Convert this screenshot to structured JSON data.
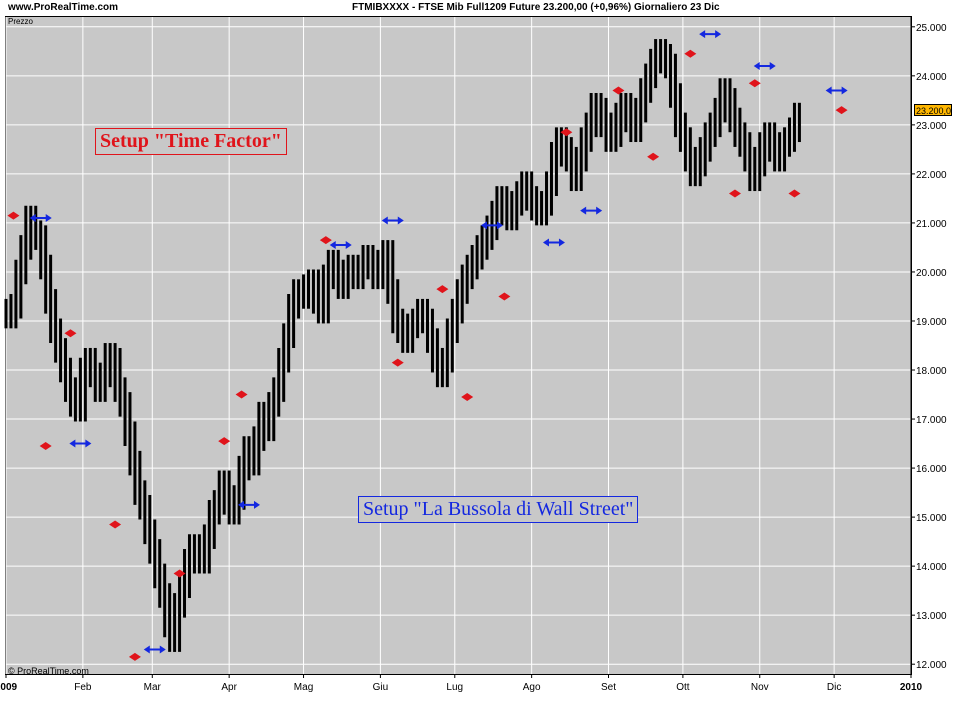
{
  "header": {
    "site": "www.ProRealTime.com",
    "symbol_info": "FTMIBXXXX - FTSE Mib Full1209 Future    23.200,00 (+0,96%)    Giornaliero  23 Dic"
  },
  "panel_label": "Prezzo",
  "footer_credit": "© ProRealTime.com",
  "annotations": {
    "time_factor": "Setup \"Time Factor\"",
    "bussola": "Setup \"La Bussola di Wall Street\""
  },
  "last_price_tag": "23.200,0",
  "colors": {
    "background": "#c8c8c8",
    "bars": "#000000",
    "red_marker": "#e0141b",
    "blue_marker": "#1428e0",
    "grid": "#ffffff",
    "price_tag": "#ffb700"
  },
  "chart_data": {
    "type": "ohlc",
    "title": "FTMIBXXXX - FTSE Mib Full1209 Future",
    "ylim": [
      11800,
      25200
    ],
    "y_ticks": [
      "12.000",
      "13.000",
      "14.000",
      "15.000",
      "16.000",
      "17.000",
      "18.000",
      "19.000",
      "20.000",
      "21.000",
      "22.000",
      "23.000",
      "24.000",
      "25.000"
    ],
    "y_tick_values": [
      12000,
      13000,
      14000,
      15000,
      16000,
      17000,
      18000,
      19000,
      20000,
      21000,
      22000,
      23000,
      24000,
      25000
    ],
    "x_labels": [
      "2009",
      "Feb",
      "Mar",
      "Apr",
      "Mag",
      "Giu",
      "Lug",
      "Ago",
      "Set",
      "Ott",
      "Nov",
      "Dic",
      "2010"
    ],
    "x_label_days": [
      0,
      31,
      59,
      90,
      120,
      151,
      181,
      212,
      243,
      273,
      304,
      334,
      365
    ],
    "grid": true,
    "series": [
      {
        "name": "price",
        "points": [
          [
            0,
            19200
          ],
          [
            2,
            19100
          ],
          [
            4,
            19300
          ],
          [
            6,
            20000
          ],
          [
            8,
            20500
          ],
          [
            10,
            21100
          ],
          [
            12,
            20800
          ],
          [
            14,
            20700
          ],
          [
            16,
            20100
          ],
          [
            18,
            19400
          ],
          [
            20,
            18800
          ],
          [
            22,
            18400
          ],
          [
            24,
            18000
          ],
          [
            26,
            17600
          ],
          [
            28,
            17300
          ],
          [
            30,
            17200
          ],
          [
            32,
            18000
          ],
          [
            34,
            18200
          ],
          [
            36,
            17900
          ],
          [
            38,
            17600
          ],
          [
            40,
            17900
          ],
          [
            42,
            18300
          ],
          [
            44,
            18200
          ],
          [
            46,
            17600
          ],
          [
            48,
            17300
          ],
          [
            50,
            16700
          ],
          [
            52,
            16100
          ],
          [
            54,
            15500
          ],
          [
            56,
            15200
          ],
          [
            58,
            14700
          ],
          [
            60,
            14300
          ],
          [
            62,
            13800
          ],
          [
            64,
            13400
          ],
          [
            66,
            12800
          ],
          [
            68,
            12500
          ],
          [
            70,
            13200
          ],
          [
            72,
            13600
          ],
          [
            74,
            14100
          ],
          [
            76,
            14400
          ],
          [
            78,
            14200
          ],
          [
            80,
            14100
          ],
          [
            82,
            14600
          ],
          [
            84,
            15100
          ],
          [
            86,
            15300
          ],
          [
            88,
            15700
          ],
          [
            90,
            15400
          ],
          [
            92,
            15100
          ],
          [
            94,
            15400
          ],
          [
            96,
            16000
          ],
          [
            98,
            16400
          ],
          [
            100,
            16100
          ],
          [
            102,
            16600
          ],
          [
            104,
            17100
          ],
          [
            106,
            16800
          ],
          [
            108,
            17300
          ],
          [
            110,
            17600
          ],
          [
            112,
            18200
          ],
          [
            114,
            18700
          ],
          [
            116,
            19300
          ],
          [
            118,
            19600
          ],
          [
            120,
            19500
          ],
          [
            122,
            19700
          ],
          [
            124,
            19800
          ],
          [
            126,
            19400
          ],
          [
            128,
            19200
          ],
          [
            130,
            19900
          ],
          [
            132,
            20200
          ],
          [
            134,
            20000
          ],
          [
            136,
            19700
          ],
          [
            138,
            20000
          ],
          [
            140,
            20100
          ],
          [
            142,
            19900
          ],
          [
            144,
            20100
          ],
          [
            146,
            20300
          ],
          [
            148,
            20200
          ],
          [
            150,
            19900
          ],
          [
            152,
            20200
          ],
          [
            154,
            20400
          ],
          [
            156,
            19600
          ],
          [
            158,
            19000
          ],
          [
            160,
            18800
          ],
          [
            162,
            18600
          ],
          [
            164,
            18900
          ],
          [
            166,
            19000
          ],
          [
            168,
            19200
          ],
          [
            170,
            19000
          ],
          [
            172,
            18600
          ],
          [
            174,
            18200
          ],
          [
            176,
            17900
          ],
          [
            178,
            18200
          ],
          [
            180,
            18800
          ],
          [
            182,
            19200
          ],
          [
            184,
            19600
          ],
          [
            186,
            19900
          ],
          [
            188,
            20100
          ],
          [
            190,
            20300
          ],
          [
            192,
            20500
          ],
          [
            194,
            20700
          ],
          [
            196,
            20900
          ],
          [
            198,
            21200
          ],
          [
            200,
            21500
          ],
          [
            202,
            21200
          ],
          [
            204,
            21100
          ],
          [
            206,
            21400
          ],
          [
            208,
            21600
          ],
          [
            210,
            21800
          ],
          [
            212,
            21500
          ],
          [
            214,
            21300
          ],
          [
            216,
            21200
          ],
          [
            218,
            21400
          ],
          [
            220,
            21800
          ],
          [
            222,
            22400
          ],
          [
            224,
            22700
          ],
          [
            226,
            22500
          ],
          [
            228,
            22300
          ],
          [
            230,
            21900
          ],
          [
            232,
            22300
          ],
          [
            234,
            22700
          ],
          [
            236,
            23000
          ],
          [
            238,
            23400
          ],
          [
            240,
            23300
          ],
          [
            242,
            23000
          ],
          [
            244,
            22700
          ],
          [
            246,
            22800
          ],
          [
            248,
            23200
          ],
          [
            250,
            23400
          ],
          [
            252,
            23100
          ],
          [
            254,
            22900
          ],
          [
            256,
            23300
          ],
          [
            258,
            23700
          ],
          [
            260,
            24000
          ],
          [
            262,
            24300
          ],
          [
            264,
            24500
          ],
          [
            266,
            24400
          ],
          [
            268,
            24200
          ],
          [
            270,
            23600
          ],
          [
            272,
            23000
          ],
          [
            274,
            22700
          ],
          [
            276,
            22300
          ],
          [
            278,
            22000
          ],
          [
            280,
            22200
          ],
          [
            282,
            22500
          ],
          [
            284,
            22800
          ],
          [
            286,
            23000
          ],
          [
            288,
            23300
          ],
          [
            290,
            23700
          ],
          [
            292,
            23500
          ],
          [
            294,
            23100
          ],
          [
            296,
            22800
          ],
          [
            298,
            22600
          ],
          [
            300,
            22300
          ],
          [
            302,
            21900
          ],
          [
            304,
            22200
          ],
          [
            306,
            22600
          ],
          [
            308,
            22800
          ],
          [
            310,
            22500
          ],
          [
            312,
            22300
          ],
          [
            314,
            22600
          ],
          [
            316,
            22700
          ],
          [
            318,
            22900
          ],
          [
            320,
            23200
          ]
        ]
      }
    ],
    "red_markers": [
      [
        3,
        21150
      ],
      [
        16,
        16450
      ],
      [
        26,
        18750
      ],
      [
        44,
        14850
      ],
      [
        52,
        12150
      ],
      [
        70,
        13850
      ],
      [
        88,
        16550
      ],
      [
        95,
        17500
      ],
      [
        129,
        20650
      ],
      [
        158,
        18150
      ],
      [
        176,
        19650
      ],
      [
        186,
        17450
      ],
      [
        201,
        19500
      ],
      [
        226,
        22850
      ],
      [
        247,
        23700
      ],
      [
        261,
        22350
      ],
      [
        276,
        24450
      ],
      [
        294,
        21600
      ],
      [
        302,
        23850
      ],
      [
        318,
        21600
      ],
      [
        337,
        23300
      ]
    ],
    "blue_markers": [
      [
        14,
        21100
      ],
      [
        30,
        16500
      ],
      [
        60,
        12300
      ],
      [
        98,
        15250
      ],
      [
        135,
        20550
      ],
      [
        156,
        21050
      ],
      [
        196,
        20950
      ],
      [
        221,
        20600
      ],
      [
        236,
        21250
      ],
      [
        284,
        24850
      ],
      [
        306,
        24200
      ],
      [
        335,
        23700
      ]
    ]
  }
}
